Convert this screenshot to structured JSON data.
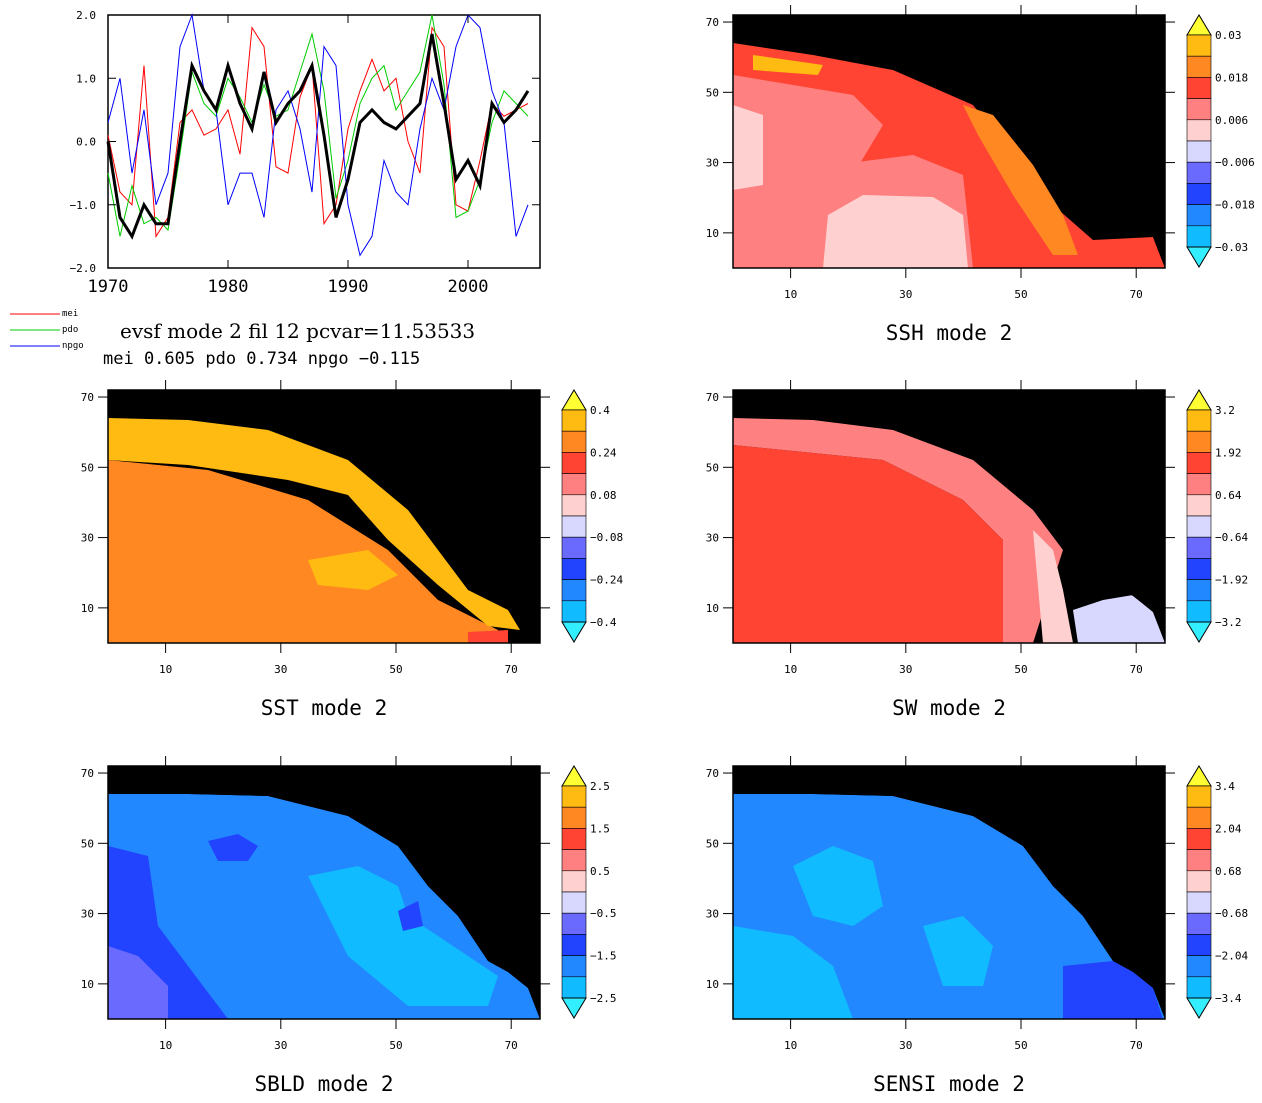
{
  "timeseries": {
    "title": "evsf mode 2 fil 12 pcvar=11.53533",
    "subtitle": "mei 0.605    pdo 0.734  npgo −0.115",
    "x_ticks": [
      "1970",
      "1980",
      "1990",
      "2000"
    ],
    "y_ticks": [
      "2.0",
      "1.0",
      "0.0",
      "−1.0",
      "−2.0"
    ],
    "legend": [
      {
        "name": "mei",
        "color": "#ff0000"
      },
      {
        "name": "pdo",
        "color": "#00cc00"
      },
      {
        "name": "npgo",
        "color": "#0000ff"
      }
    ]
  },
  "map_axes": {
    "x_ticks": [
      "10",
      "30",
      "50",
      "70"
    ],
    "y_ticks": [
      "70",
      "50",
      "30",
      "10"
    ]
  },
  "maps": [
    {
      "id": "ssh",
      "title": "SSH mode 2",
      "colorbar": [
        "0.03",
        "0.018",
        "0.006",
        "−0.006",
        "−0.018",
        "−0.03"
      ],
      "style": "ssh"
    },
    {
      "id": "sst",
      "title": "SST mode 2",
      "colorbar": [
        "0.4",
        "0.24",
        "0.08",
        "−0.08",
        "−0.24",
        "−0.4"
      ],
      "style": "sst"
    },
    {
      "id": "sw",
      "title": "SW mode 2",
      "colorbar": [
        "3.2",
        "1.92",
        "0.64",
        "−0.64",
        "−1.92",
        "−3.2"
      ],
      "style": "sw"
    },
    {
      "id": "sbld",
      "title": "SBLD mode 2",
      "colorbar": [
        "2.5",
        "1.5",
        "0.5",
        "−0.5",
        "−1.5",
        "−2.5"
      ],
      "style": "sbld"
    },
    {
      "id": "sensi",
      "title": "SENSI mode 2",
      "colorbar": [
        "3.4",
        "2.04",
        "0.68",
        "−0.68",
        "−2.04",
        "−3.4"
      ],
      "style": "sensi"
    }
  ],
  "colors": {
    "scale": [
      "#ffff33",
      "#ffbb11",
      "#ff8822",
      "#ff4433",
      "#ff8080",
      "#ffd0d0",
      "#d8d8ff",
      "#6a6aff",
      "#2244ff",
      "#2288ff",
      "#11bbff",
      "#33eeff"
    ],
    "land": "#000000"
  },
  "chart_data": {
    "type": "line",
    "title": "evsf mode 2 fil 12 pcvar=11.53533",
    "xlim": [
      1970,
      2006
    ],
    "ylim": [
      -2.0,
      2.0
    ],
    "series": [
      {
        "name": "mei",
        "color": "#ff0000",
        "x": [
          1970,
          1971,
          1972,
          1973,
          1974,
          1975,
          1976,
          1977,
          1978,
          1979,
          1980,
          1981,
          1982,
          1983,
          1984,
          1985,
          1986,
          1987,
          1988,
          1989,
          1990,
          1991,
          1992,
          1993,
          1994,
          1995,
          1996,
          1997,
          1998,
          1999,
          2000,
          2001,
          2002,
          2003,
          2004,
          2005
        ],
        "values": [
          0.1,
          -0.8,
          -1.0,
          1.2,
          -1.5,
          -1.2,
          0.3,
          0.5,
          0.1,
          0.2,
          0.5,
          -0.2,
          1.8,
          1.5,
          -0.4,
          -0.5,
          0.7,
          1.2,
          -1.3,
          -1.0,
          0.2,
          0.8,
          1.3,
          0.8,
          1.0,
          0.0,
          -0.5,
          1.8,
          1.5,
          -1.0,
          -1.1,
          -0.3,
          0.6,
          0.4,
          0.5,
          0.6
        ]
      },
      {
        "name": "pdo",
        "color": "#00cc00",
        "x": [
          1970,
          1971,
          1972,
          1973,
          1974,
          1975,
          1976,
          1977,
          1978,
          1979,
          1980,
          1981,
          1982,
          1983,
          1984,
          1985,
          1986,
          1987,
          1988,
          1989,
          1990,
          1991,
          1992,
          1993,
          1994,
          1995,
          1996,
          1997,
          1998,
          1999,
          2000,
          2001,
          2002,
          2003,
          2004,
          2005
        ],
        "values": [
          -0.5,
          -1.5,
          -0.7,
          -1.3,
          -1.2,
          -1.4,
          -0.2,
          1.1,
          0.6,
          0.4,
          1.0,
          0.7,
          0.3,
          0.9,
          0.4,
          0.5,
          1.1,
          1.7,
          0.8,
          -0.9,
          -0.3,
          0.6,
          1.0,
          1.2,
          0.5,
          0.8,
          1.1,
          2.0,
          0.9,
          -1.2,
          -1.1,
          -0.6,
          0.3,
          0.8,
          0.6,
          0.4
        ]
      },
      {
        "name": "npgo",
        "color": "#0000ff",
        "x": [
          1970,
          1971,
          1972,
          1973,
          1974,
          1975,
          1976,
          1977,
          1978,
          1979,
          1980,
          1981,
          1982,
          1983,
          1984,
          1985,
          1986,
          1987,
          1988,
          1989,
          1990,
          1991,
          1992,
          1993,
          1994,
          1995,
          1996,
          1997,
          1998,
          1999,
          2000,
          2001,
          2002,
          2003,
          2004,
          2005
        ],
        "values": [
          0.3,
          1.0,
          -0.5,
          0.5,
          -1.0,
          -0.5,
          1.5,
          2.0,
          0.8,
          0.5,
          -1.0,
          -0.5,
          -0.5,
          -1.2,
          0.5,
          0.8,
          0.2,
          -0.8,
          1.5,
          1.2,
          -1.0,
          -1.8,
          -1.5,
          -0.3,
          -0.8,
          -1.0,
          0.2,
          1.0,
          0.5,
          1.5,
          2.0,
          1.8,
          0.8,
          0.3,
          -1.5,
          -1.0
        ]
      },
      {
        "name": "",
        "color": "#000000",
        "x": [
          1970,
          1971,
          1972,
          1973,
          1974,
          1975,
          1976,
          1977,
          1978,
          1979,
          1980,
          1981,
          1982,
          1983,
          1984,
          1985,
          1986,
          1987,
          1988,
          1989,
          1990,
          1991,
          1992,
          1993,
          1994,
          1995,
          1996,
          1997,
          1998,
          1999,
          2000,
          2001,
          2002,
          2003,
          2004,
          2005
        ],
        "values": [
          0.0,
          -1.2,
          -1.5,
          -1.0,
          -1.3,
          -1.3,
          0.0,
          1.2,
          0.8,
          0.5,
          1.2,
          0.6,
          0.2,
          1.1,
          0.3,
          0.6,
          0.8,
          1.2,
          0.1,
          -1.2,
          -0.6,
          0.3,
          0.5,
          0.3,
          0.2,
          0.4,
          0.6,
          1.7,
          0.6,
          -0.6,
          -0.3,
          -0.7,
          0.6,
          0.3,
          0.5,
          0.8
        ]
      }
    ]
  }
}
